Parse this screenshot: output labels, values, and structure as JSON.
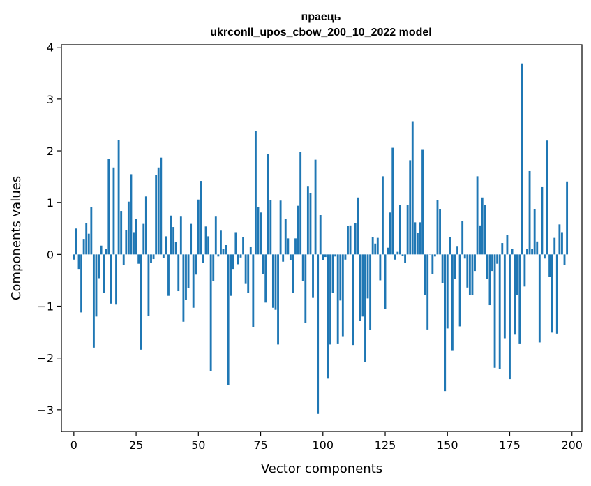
{
  "chart_data": {
    "type": "bar",
    "title_line1": "праець",
    "title_line2": "ukrconll_upos_cbow_200_10_2022 model",
    "xlabel": "Vector components",
    "ylabel": "Components values",
    "xlim": [
      -5,
      204
    ],
    "ylim": [
      -3.42,
      4.05
    ],
    "x_ticks": [
      0,
      25,
      50,
      75,
      100,
      125,
      150,
      175,
      200
    ],
    "y_ticks": [
      -3,
      -2,
      -1,
      0,
      1,
      2,
      3,
      4
    ],
    "x_tick_labels": [
      "0",
      "25",
      "50",
      "75",
      "100",
      "125",
      "150",
      "175",
      "200"
    ],
    "y_tick_labels": [
      "−3",
      "−2",
      "−1",
      "0",
      "1",
      "2",
      "3",
      "4"
    ],
    "bar_color": "#1f77b4",
    "values": [
      -0.1,
      0.5,
      -0.28,
      -1.12,
      0.3,
      0.6,
      0.4,
      0.91,
      -1.8,
      -1.2,
      -0.46,
      0.17,
      -0.74,
      0.1,
      1.85,
      -0.95,
      1.68,
      -0.97,
      2.21,
      0.84,
      -0.2,
      0.47,
      1.02,
      1.55,
      0.43,
      0.68,
      -0.18,
      -1.84,
      0.59,
      1.12,
      -1.19,
      -0.16,
      -0.09,
      1.54,
      1.68,
      1.87,
      -0.07,
      0.35,
      -0.8,
      0.75,
      0.53,
      0.24,
      -0.71,
      0.73,
      -1.3,
      -0.88,
      -0.65,
      0.59,
      -1.03,
      -0.39,
      1.06,
      1.42,
      -0.17,
      0.54,
      0.35,
      -2.26,
      -0.52,
      0.73,
      -0.04,
      0.46,
      0.11,
      0.18,
      -2.53,
      -0.8,
      -0.28,
      0.43,
      -0.19,
      -0.06,
      0.33,
      -0.57,
      -0.74,
      0.14,
      -1.4,
      2.39,
      0.91,
      0.81,
      -0.38,
      -0.93,
      1.94,
      1.05,
      -1.03,
      -1.07,
      -1.74,
      1.04,
      -0.14,
      0.68,
      0.31,
      -0.11,
      -0.75,
      0.31,
      0.94,
      1.98,
      -0.52,
      -1.32,
      1.31,
      1.18,
      -0.84,
      1.83,
      -3.08,
      0.76,
      -0.11,
      -0.05,
      -2.4,
      -1.74,
      -0.75,
      -0.04,
      -1.72,
      -0.89,
      -1.58,
      -0.1,
      0.55,
      0.56,
      -1.75,
      0.6,
      1.1,
      -1.28,
      -1.2,
      -2.08,
      -0.85,
      -1.46,
      0.34,
      0.21,
      0.32,
      -0.5,
      1.51,
      -1.05,
      0.13,
      0.81,
      2.06,
      -0.1,
      0.05,
      0.95,
      -0.03,
      -0.17,
      0.96,
      1.82,
      2.56,
      0.62,
      0.41,
      0.62,
      2.02,
      -0.78,
      -1.45,
      0.0,
      -0.38,
      -0.04,
      1.05,
      0.87,
      -0.56,
      -2.64,
      -1.43,
      0.33,
      -1.85,
      -0.47,
      0.15,
      -1.39,
      0.65,
      -0.08,
      -0.64,
      -0.79,
      -0.79,
      -0.32,
      1.51,
      0.56,
      1.1,
      0.96,
      -0.47,
      -0.98,
      -0.32,
      -2.19,
      -0.18,
      -2.22,
      0.22,
      -1.62,
      0.38,
      -2.41,
      0.1,
      -1.55,
      -0.78,
      -1.72,
      3.69,
      -0.62,
      0.1,
      1.61,
      0.11,
      0.88,
      0.25,
      -1.7,
      1.3,
      -0.08,
      2.2,
      -0.43,
      -1.51,
      0.32,
      -1.53,
      0.58,
      0.43,
      -0.2,
      1.41
    ]
  }
}
